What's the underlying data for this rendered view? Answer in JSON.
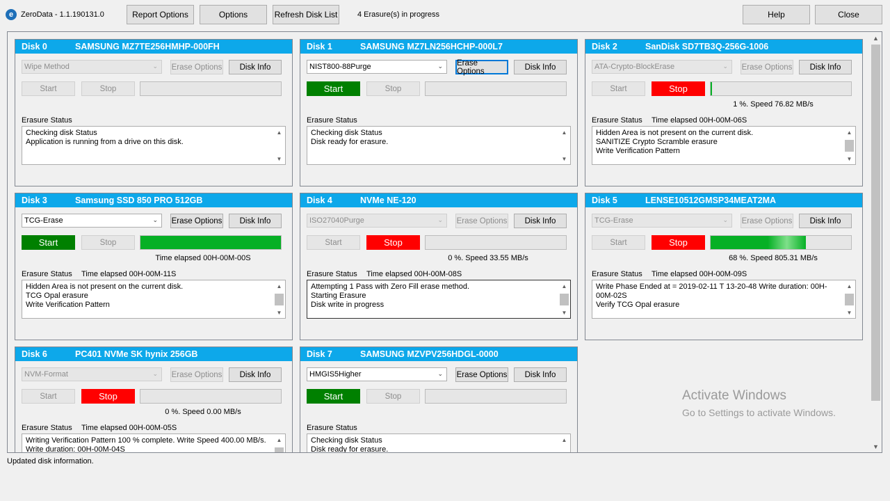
{
  "app": {
    "title": "ZeroData - 1.1.190131.0",
    "logo_letter": "e",
    "erasures_in_progress": "4 Erasure(s) in progress"
  },
  "toolbar": {
    "report_options": "Report Options",
    "options": "Options",
    "refresh": "Refresh Disk List",
    "help": "Help",
    "close": "Close"
  },
  "labels": {
    "erase_options": "Erase Options",
    "disk_info": "Disk Info",
    "start": "Start",
    "stop": "Stop",
    "erasure_status": "Erasure Status"
  },
  "disks": [
    {
      "num": "Disk  0",
      "model": "SAMSUNG MZ7TE256HMHP-000FH",
      "method": "Wipe Method",
      "method_enabled": false,
      "erase_options_enabled": false,
      "start_state": "disabled",
      "stop_state": "disabled",
      "progress": 0,
      "speed_text": "",
      "elapsed": "",
      "status_lines": [
        "Checking disk Status",
        "Application is running from a drive on this disk."
      ],
      "status_scroll_thumb": false,
      "status_dark": false
    },
    {
      "num": "Disk  1",
      "model": "SAMSUNG MZ7LN256HCHP-000L7",
      "method": "NIST800-88Purge",
      "method_enabled": true,
      "erase_options_enabled": true,
      "erase_options_focused": true,
      "start_state": "green",
      "stop_state": "disabled",
      "progress": 0,
      "speed_text": "",
      "elapsed": "",
      "status_lines": [
        "Checking disk Status",
        "Disk ready for erasure."
      ],
      "status_scroll_thumb": false,
      "status_dark": false
    },
    {
      "num": "Disk  2",
      "model": "SanDisk SD7TB3Q-256G-1006",
      "method": "ATA-Crypto-BlockErase",
      "method_enabled": false,
      "erase_options_enabled": false,
      "start_state": "disabled",
      "stop_state": "red",
      "progress": 0.01,
      "speed_text": "1 %. Speed     76.82 MB/s",
      "elapsed": "Time elapsed 00H-00M-06S",
      "status_lines": [
        "Hidden Area is not present on the current disk.",
        "SANITIZE Crypto Scramble erasure",
        "Write Verification Pattern"
      ],
      "status_scroll_thumb": true,
      "status_dark": false
    },
    {
      "num": "Disk  3",
      "model": "Samsung SSD 850 PRO 512GB",
      "method": "TCG-Erase",
      "method_enabled": true,
      "erase_options_enabled": true,
      "start_state": "green",
      "stop_state": "disabled",
      "progress": 1.0,
      "speed_text": "Time elapsed 00H-00M-00S",
      "elapsed": "Time elapsed 00H-00M-11S",
      "status_lines": [
        "Hidden Area is not present on the current disk.",
        "TCG Opal erasure",
        "Write Verification Pattern"
      ],
      "status_scroll_thumb": true,
      "status_dark": false
    },
    {
      "num": "Disk  4",
      "model": "NVMe    NE-120",
      "method": "ISO27040Purge",
      "method_enabled": false,
      "erase_options_enabled": false,
      "start_state": "disabled",
      "stop_state": "red",
      "progress": 0,
      "speed_text": "0 %. Speed     33.55 MB/s",
      "elapsed": "Time elapsed 00H-00M-08S",
      "status_lines": [
        "Attempting 1 Pass with Zero Fill erase method.",
        "Starting Erasure",
        "Disk write in progress"
      ],
      "status_scroll_thumb": true,
      "status_dark": true
    },
    {
      "num": "Disk  5",
      "model": "LENSE10512GMSP34MEAT2MA",
      "method": "TCG-Erase",
      "method_enabled": false,
      "erase_options_enabled": false,
      "start_state": "disabled",
      "stop_state": "red",
      "progress": 0.68,
      "speed_text": "68 %. Speed    805.31 MB/s",
      "elapsed": "Time elapsed 00H-00M-09S",
      "status_lines": [
        "Write Phase Ended at = 2019-02-11 T 13-20-48 Write duration: 00H-",
        "00M-02S",
        "Verify TCG Opal erasure"
      ],
      "status_scroll_thumb": true,
      "status_dark": false
    },
    {
      "num": "Disk  6",
      "model": "PC401 NVMe SK hynix 256GB",
      "method": "NVM-Format",
      "method_enabled": false,
      "erase_options_enabled": false,
      "start_state": "disabled",
      "stop_state": "red",
      "progress": 0,
      "speed_text": "0 %. Speed      0.00 MB/s",
      "elapsed": "Time elapsed 00H-00M-05S",
      "status_lines": [
        "Writing Verification Pattern 100 % complete. Write Speed   400.00 MB/s.",
        "Write duration: 00H-00M-04S"
      ],
      "status_scroll_thumb": true,
      "status_dark": false
    },
    {
      "num": "Disk  7",
      "model": "SAMSUNG MZVPV256HDGL-0000",
      "method": "HMGIS5Higher",
      "method_enabled": true,
      "erase_options_enabled": true,
      "start_state": "green",
      "stop_state": "disabled",
      "progress": 0,
      "speed_text": "",
      "elapsed": "",
      "status_lines": [
        "Checking disk Status",
        "Disk ready for erasure."
      ],
      "status_scroll_thumb": false,
      "status_dark": false
    }
  ],
  "watermark": {
    "line1": "Activate Windows",
    "line2": "Go to Settings to activate Windows."
  },
  "statusbar": "Updated disk information.",
  "colors": {
    "header": "#0da8ea",
    "start_green": "#008000",
    "stop_red": "#ff0000",
    "progress_green": "#06b025"
  }
}
